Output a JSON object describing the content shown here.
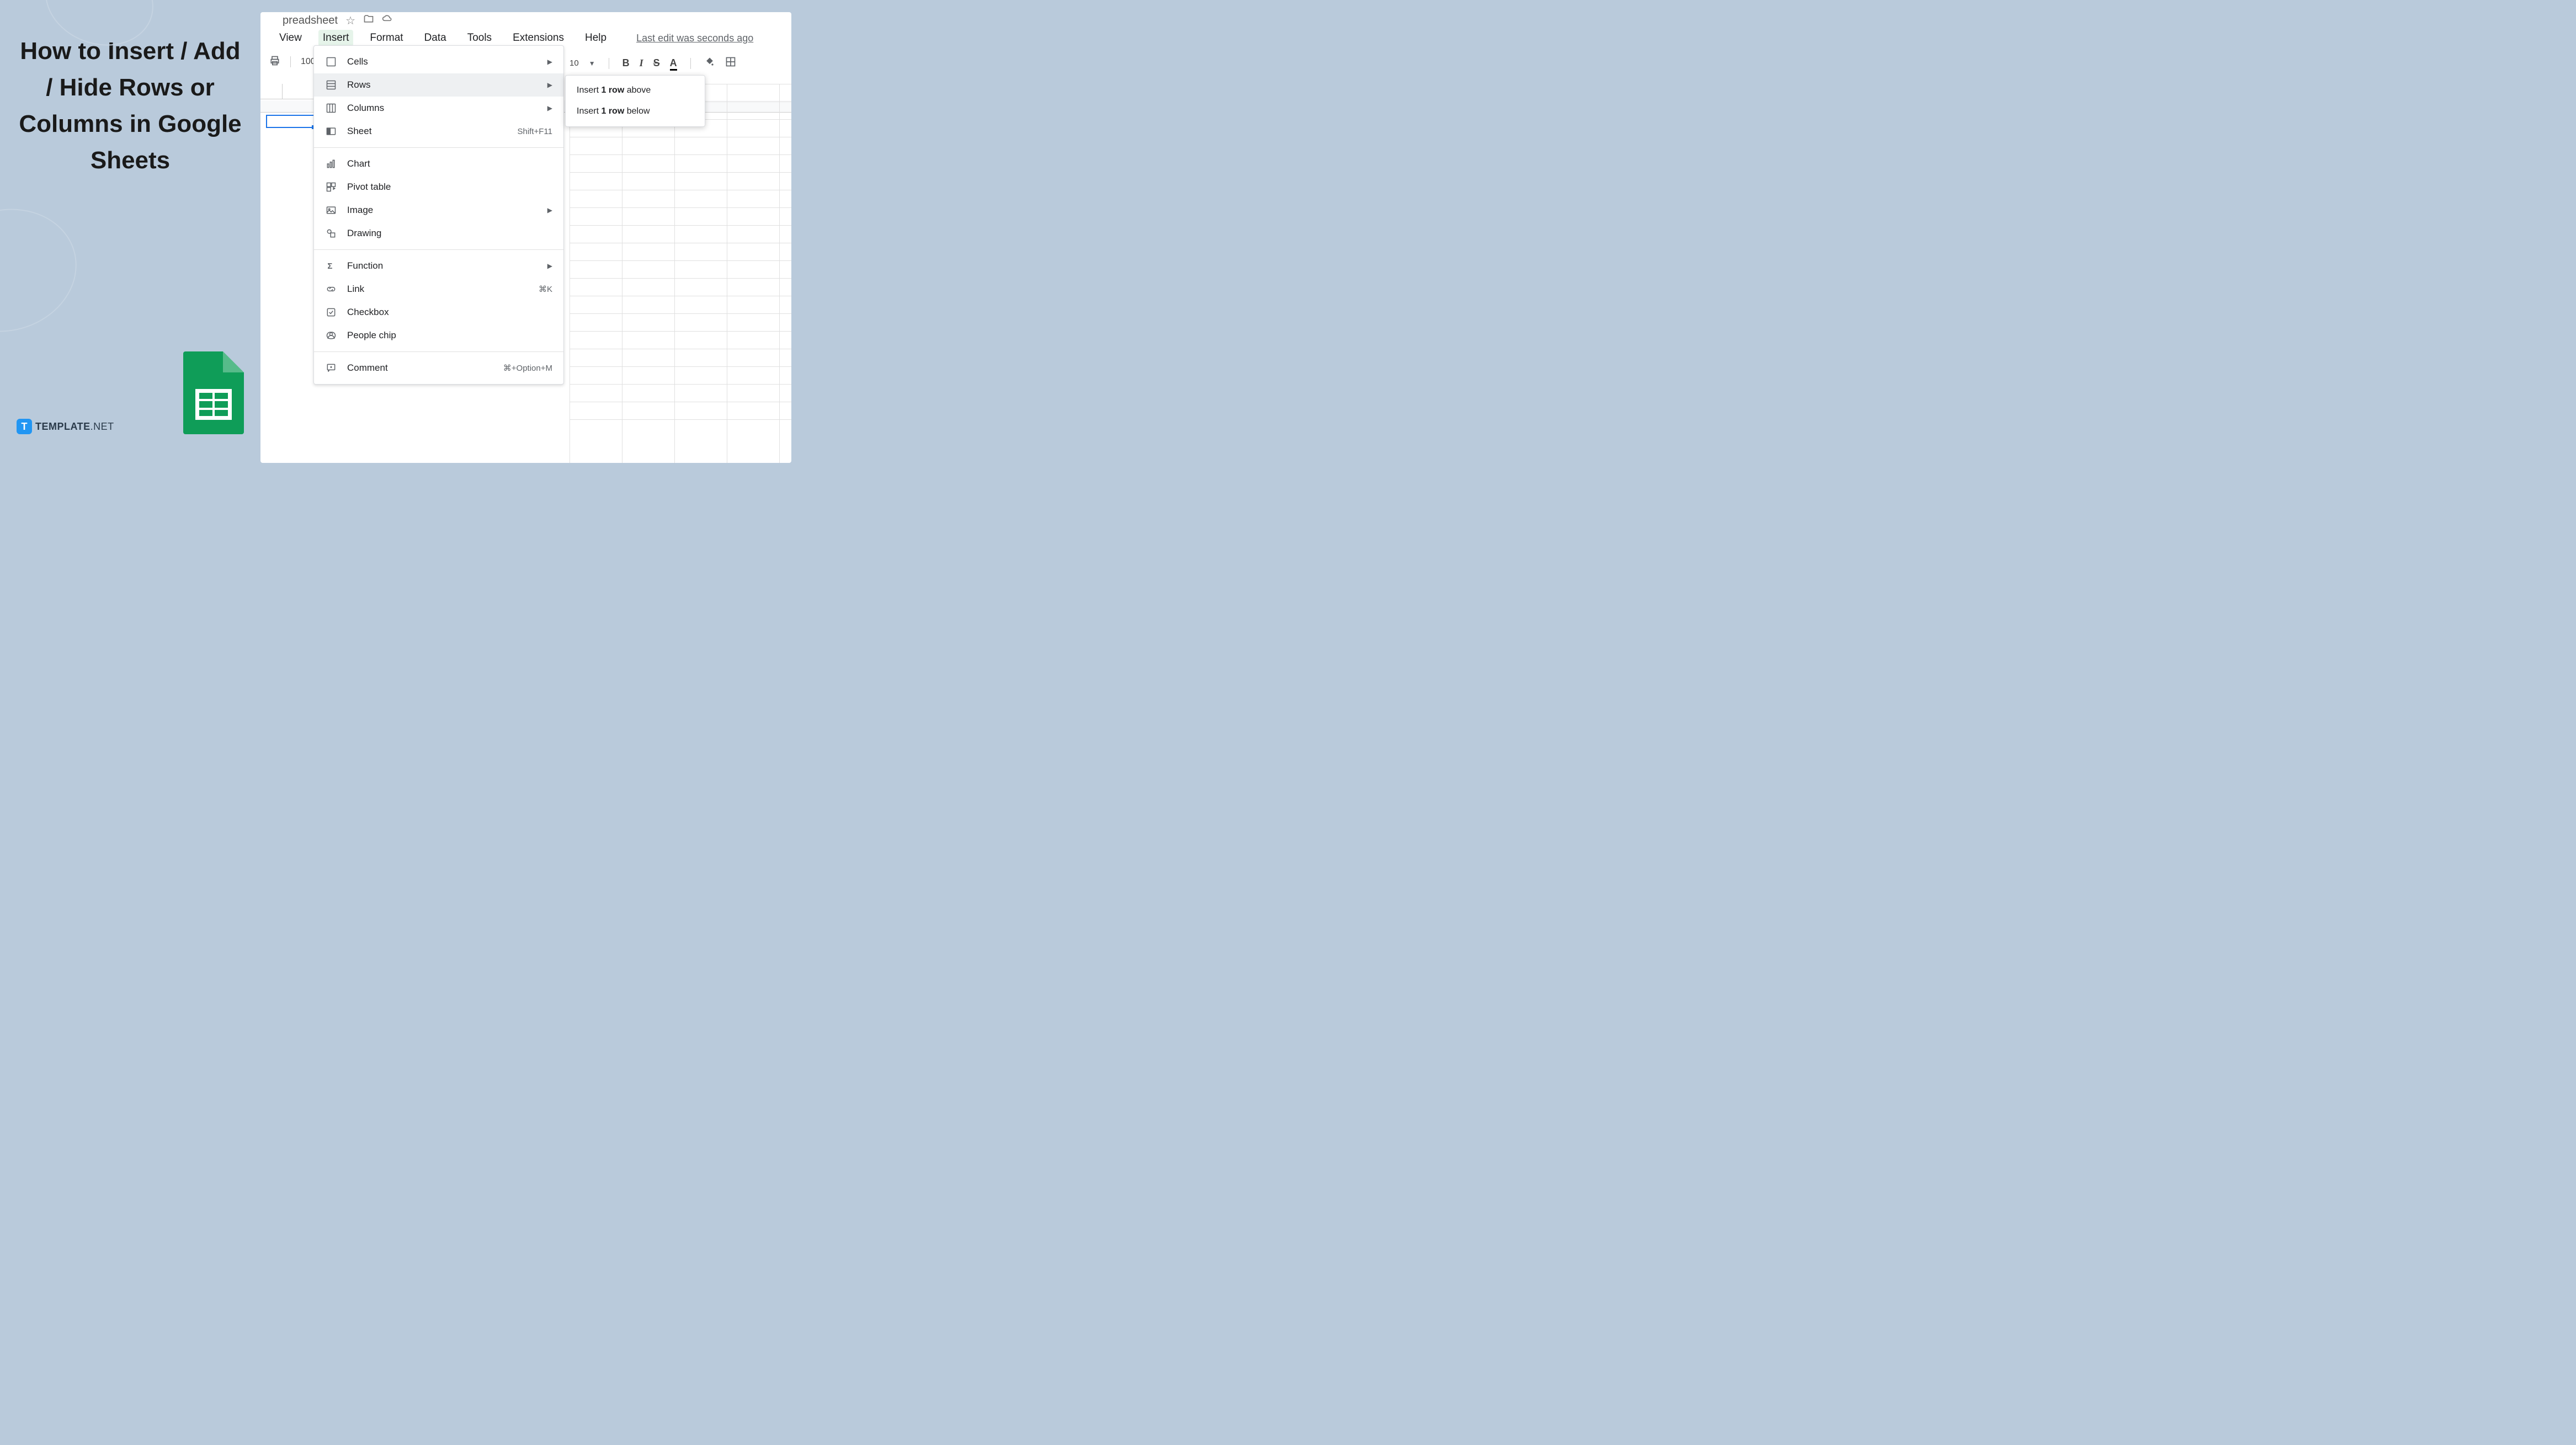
{
  "left": {
    "title": "How to Insert / Add / Hide Rows or Columns in Google Sheets",
    "brand_name": "TEMPLATE",
    "brand_suffix": ".NET",
    "brand_letter": "T"
  },
  "sheets": {
    "doc_title_fragment": "preadsheet",
    "menubar": [
      "View",
      "Insert",
      "Format",
      "Data",
      "Tools",
      "Extensions",
      "Help"
    ],
    "active_menu_index": 1,
    "last_edit": "Last edit was seconds ago",
    "zoom": "100",
    "font_size": "10"
  },
  "insert_menu": [
    {
      "icon": "cells",
      "label": "Cells",
      "submenu": true
    },
    {
      "icon": "rows",
      "label": "Rows",
      "submenu": true,
      "highlight": true
    },
    {
      "icon": "columns",
      "label": "Columns",
      "submenu": true
    },
    {
      "icon": "sheet",
      "label": "Sheet",
      "shortcut": "Shift+F11"
    },
    {
      "divider": true
    },
    {
      "icon": "chart",
      "label": "Chart"
    },
    {
      "icon": "pivot",
      "label": "Pivot table"
    },
    {
      "icon": "image",
      "label": "Image",
      "submenu": true
    },
    {
      "icon": "drawing",
      "label": "Drawing"
    },
    {
      "divider": true
    },
    {
      "icon": "function",
      "label": "Function",
      "submenu": true
    },
    {
      "icon": "link",
      "label": "Link",
      "shortcut": "⌘K"
    },
    {
      "icon": "checkbox",
      "label": "Checkbox"
    },
    {
      "icon": "people",
      "label": "People chip"
    },
    {
      "divider": true
    },
    {
      "icon": "comment",
      "label": "Comment",
      "shortcut": "⌘+Option+M"
    }
  ],
  "rows_submenu": [
    {
      "prefix": "Insert ",
      "bold": "1 row",
      "suffix": " above"
    },
    {
      "prefix": "Insert ",
      "bold": "1 row",
      "suffix": " below"
    }
  ],
  "colors": {
    "left_bg": "#b9cadb",
    "sheets_green": "#0f9d58",
    "sheets_fold": "#57bb8a",
    "brand_blue": "#2196f3",
    "menu_highlight": "#e6f4ea",
    "item_highlight": "#eef0f2",
    "selection_blue": "#1a73e8",
    "grid_line": "#e0e0e0"
  }
}
